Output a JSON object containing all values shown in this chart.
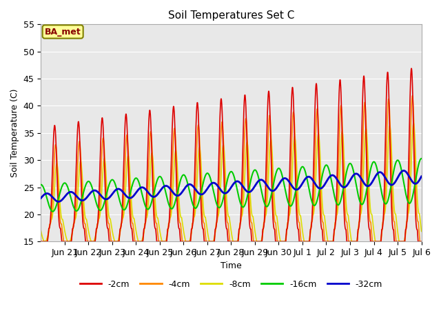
{
  "title": "Soil Temperatures Set C",
  "xlabel": "Time",
  "ylabel": "Soil Temperature (C)",
  "ylim": [
    15,
    55
  ],
  "xlim": [
    0,
    16
  ],
  "bg_color": "#e8e8e8",
  "annotation_text": "BA_met",
  "annotation_bg": "#ffff99",
  "annotation_border": "#808000",
  "annotation_text_color": "#880000",
  "series_colors": {
    "-2cm": "#dd0000",
    "-4cm": "#ff8800",
    "-8cm": "#dddd00",
    "-16cm": "#00cc00",
    "-32cm": "#0000cc"
  },
  "tick_positions": [
    1,
    2,
    3,
    4,
    5,
    6,
    7,
    8,
    9,
    10,
    11,
    12,
    13,
    14,
    15,
    16
  ],
  "tick_labels": [
    "Jun 21",
    "Jun 22",
    "Jun 23",
    "Jun 24",
    "Jun 25",
    "Jun 26",
    "Jun 27",
    "Jun 28",
    "Jun 29",
    "Jun 30",
    "Jul 1",
    "Jul 2",
    "Jul 3",
    "Jul 4",
    "Jul 5",
    "Jul 6"
  ],
  "yticks": [
    15,
    20,
    25,
    30,
    35,
    40,
    45,
    50,
    55
  ]
}
